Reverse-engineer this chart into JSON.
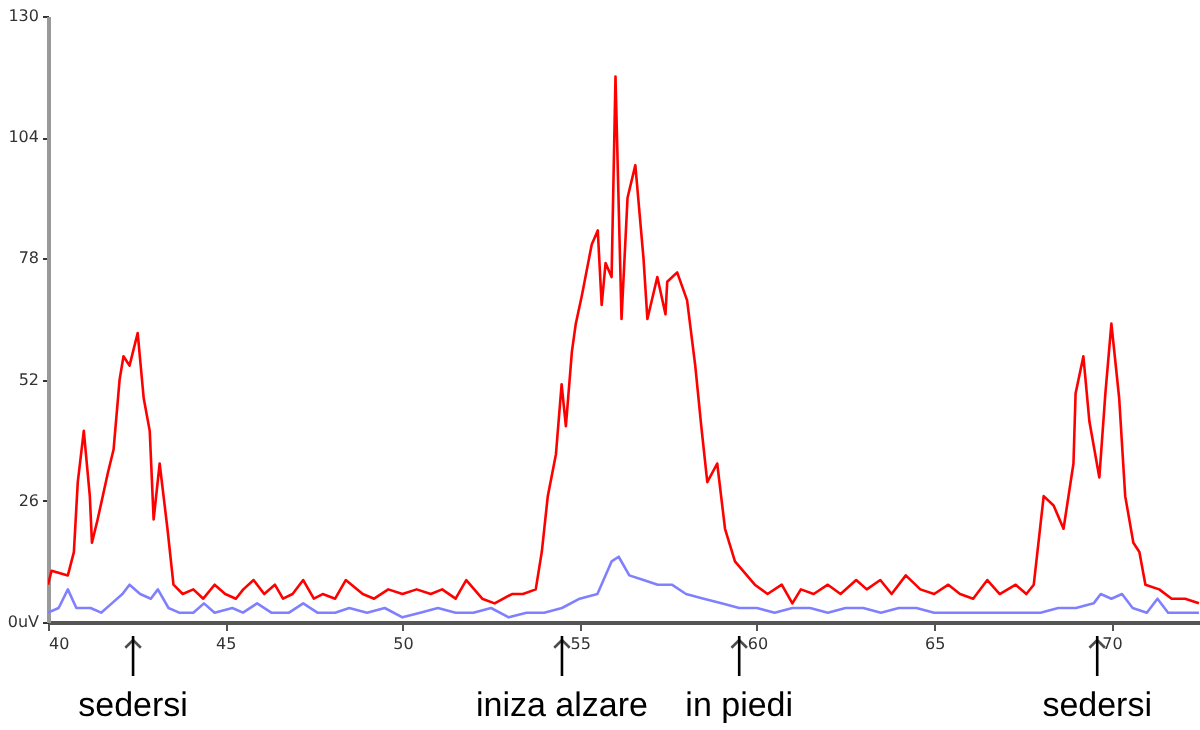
{
  "chart_data": {
    "type": "line",
    "xlim": [
      40,
      72.5
    ],
    "xticks": [
      40,
      45,
      50,
      55,
      60,
      65,
      70
    ],
    "ylim": [
      0,
      130
    ],
    "yticks": [
      {
        "value": 0,
        "label": "0uV"
      },
      26,
      52,
      78,
      104,
      130
    ],
    "line_style": "solid",
    "marker": "none",
    "series": [
      {
        "color": "#ff0000",
        "x": [
          40,
          40.1,
          40.56,
          40.73,
          40.84,
          41.01,
          41.18,
          41.24,
          41.4,
          41.69,
          41.85,
          42.02,
          42.13,
          42.3,
          42.53,
          42.7,
          42.87,
          42.98,
          43.15,
          43.37,
          43.54,
          43.8,
          44.1,
          44.38,
          44.7,
          45.0,
          45.3,
          45.51,
          45.8,
          46.1,
          46.4,
          46.63,
          46.9,
          47.2,
          47.5,
          47.75,
          48.1,
          48.4,
          48.88,
          49.2,
          49.6,
          50.0,
          50.4,
          50.8,
          51.12,
          51.5,
          51.8,
          52.25,
          52.6,
          53.09,
          53.4,
          53.76,
          53.93,
          54.1,
          54.33,
          54.49,
          54.61,
          54.78,
          54.89,
          55.06,
          55.34,
          55.51,
          55.62,
          55.73,
          55.9,
          56.01,
          56.18,
          56.35,
          56.57,
          56.8,
          56.91,
          57.19,
          57.42,
          57.47,
          57.75,
          58.03,
          58.26,
          58.43,
          58.6,
          58.88,
          59.1,
          59.38,
          59.94,
          60.3,
          60.7,
          61.0,
          61.24,
          61.6,
          62.0,
          62.36,
          62.8,
          63.1,
          63.48,
          63.8,
          64.2,
          64.61,
          65.0,
          65.4,
          65.73,
          66.1,
          66.5,
          66.85,
          67.3,
          67.6,
          67.81,
          68.09,
          68.37,
          68.65,
          68.93,
          68.99,
          69.21,
          69.38,
          69.66,
          69.83,
          70.0,
          70.22,
          70.39,
          70.62,
          70.79,
          70.96,
          71.35,
          71.7,
          72.08,
          72.47
        ],
        "values": [
          8,
          11,
          10,
          15,
          30,
          41,
          27,
          17,
          22,
          32,
          37,
          52,
          57,
          55,
          62,
          48,
          41,
          22,
          34,
          20,
          8,
          6,
          7,
          5,
          8,
          6,
          5,
          7,
          9,
          6,
          8,
          5,
          6,
          9,
          5,
          6,
          5,
          9,
          6,
          5,
          7,
          6,
          7,
          6,
          7,
          5,
          9,
          5,
          4,
          6,
          6,
          7,
          15,
          27,
          36,
          51,
          42,
          58,
          64,
          70,
          81,
          84,
          68,
          77,
          74,
          117,
          65,
          91,
          98,
          78,
          65,
          74,
          66,
          73,
          75,
          69,
          55,
          42,
          30,
          34,
          20,
          13,
          8,
          6,
          8,
          4,
          7,
          6,
          8,
          6,
          9,
          7,
          9,
          6,
          10,
          7,
          6,
          8,
          6,
          5,
          9,
          6,
          8,
          6,
          8,
          27,
          25,
          20,
          34,
          49,
          57,
          43,
          31,
          49,
          64,
          48,
          27,
          17,
          15,
          8,
          7,
          5,
          5,
          4
        ]
      },
      {
        "color": "#8080ff",
        "x": [
          40,
          40.3,
          40.56,
          40.8,
          41.2,
          41.5,
          41.8,
          42.1,
          42.3,
          42.6,
          42.9,
          43.1,
          43.4,
          43.7,
          44.1,
          44.4,
          44.7,
          45.2,
          45.5,
          45.9,
          46.3,
          46.8,
          47.2,
          47.6,
          48.1,
          48.5,
          49.0,
          49.5,
          50.0,
          50.5,
          51.0,
          51.5,
          52.0,
          52.5,
          53.0,
          53.5,
          54.0,
          54.5,
          55.0,
          55.5,
          55.9,
          56.1,
          56.4,
          56.8,
          57.2,
          57.6,
          58.0,
          58.5,
          59.0,
          59.5,
          60.0,
          60.5,
          61.0,
          61.5,
          62.0,
          62.5,
          63.0,
          63.5,
          64.0,
          64.5,
          65.0,
          65.5,
          66.0,
          66.5,
          67.0,
          67.5,
          68.0,
          68.5,
          69.0,
          69.5,
          69.7,
          70.0,
          70.3,
          70.6,
          71.0,
          71.3,
          71.6,
          72.0,
          72.47
        ],
        "values": [
          2,
          3,
          7,
          3,
          3,
          2,
          4,
          6,
          8,
          6,
          5,
          7,
          3,
          2,
          2,
          4,
          2,
          3,
          2,
          4,
          2,
          2,
          4,
          2,
          2,
          3,
          2,
          3,
          1,
          2,
          3,
          2,
          2,
          3,
          1,
          2,
          2,
          3,
          5,
          6,
          13,
          14,
          10,
          9,
          8,
          8,
          6,
          5,
          4,
          3,
          3,
          2,
          3,
          3,
          2,
          3,
          3,
          2,
          3,
          3,
          2,
          2,
          2,
          2,
          2,
          2,
          2,
          3,
          3,
          4,
          6,
          5,
          6,
          3,
          2,
          5,
          2,
          2,
          2
        ]
      }
    ],
    "annotations": [
      {
        "text": "sedersi",
        "x": 42.4
      },
      {
        "text": "iniza alzare",
        "x": 54.5
      },
      {
        "text": "in piedi",
        "x": 59.5
      },
      {
        "text": "sedersi",
        "x": 69.6
      }
    ]
  }
}
